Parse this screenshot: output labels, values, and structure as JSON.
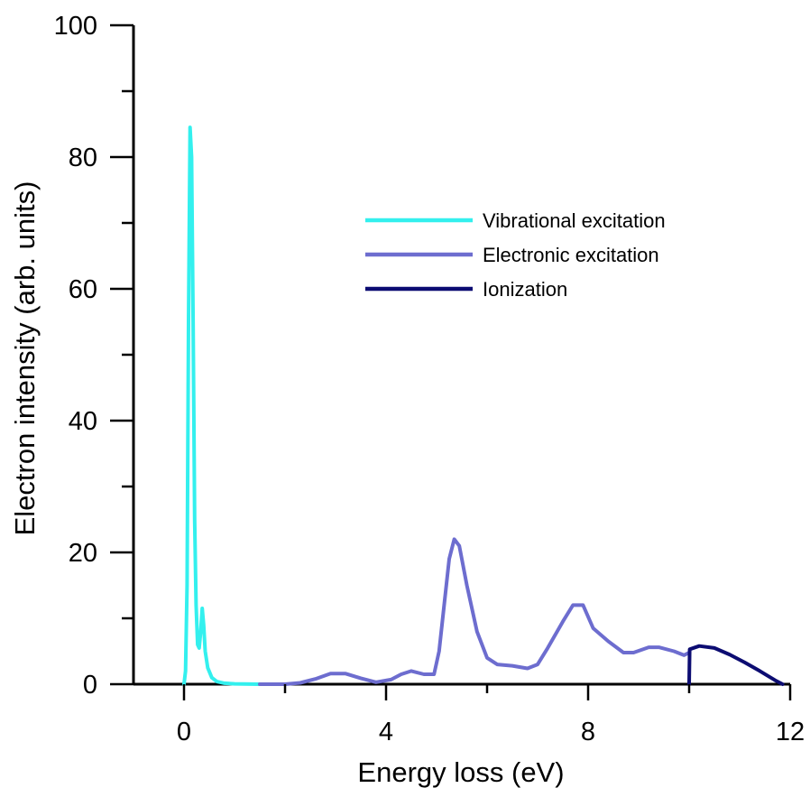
{
  "chart_data": {
    "type": "line",
    "title": "",
    "xlabel": "Energy loss (eV)",
    "ylabel": "Electron intensity (arb. units)",
    "xlim": [
      -1,
      12
    ],
    "ylim": [
      0,
      100
    ],
    "x_major_ticks": [
      0,
      4,
      8,
      12
    ],
    "x_tick_labels": [
      "0",
      "4",
      "8",
      "12"
    ],
    "x_minor_ticks": [
      2,
      6,
      10
    ],
    "y_major_ticks": [
      0,
      20,
      40,
      60,
      80,
      100
    ],
    "y_tick_labels": [
      "0",
      "20",
      "40",
      "60",
      "80",
      "100"
    ],
    "y_minor_ticks": [
      10,
      30,
      50,
      70,
      90
    ],
    "legend_position": "upper-right",
    "grid": false,
    "series": [
      {
        "name": "Vibrational excitation",
        "color": "#33f0ee",
        "points": [
          [
            0.0,
            0
          ],
          [
            0.03,
            2
          ],
          [
            0.06,
            15
          ],
          [
            0.09,
            55
          ],
          [
            0.12,
            84.5
          ],
          [
            0.15,
            80
          ],
          [
            0.18,
            55
          ],
          [
            0.21,
            25
          ],
          [
            0.24,
            12
          ],
          [
            0.27,
            6
          ],
          [
            0.3,
            5.5
          ],
          [
            0.33,
            8
          ],
          [
            0.36,
            11.5
          ],
          [
            0.39,
            9
          ],
          [
            0.42,
            5
          ],
          [
            0.47,
            2.5
          ],
          [
            0.55,
            1
          ],
          [
            0.65,
            0.4
          ],
          [
            0.8,
            0.15
          ],
          [
            1.0,
            0.05
          ],
          [
            1.5,
            0
          ]
        ]
      },
      {
        "name": "Electronic excitation",
        "color": "#6d6dcf",
        "points": [
          [
            1.5,
            0
          ],
          [
            2.0,
            0
          ],
          [
            2.3,
            0.2
          ],
          [
            2.6,
            0.8
          ],
          [
            2.9,
            1.6
          ],
          [
            3.2,
            1.6
          ],
          [
            3.5,
            0.9
          ],
          [
            3.8,
            0.3
          ],
          [
            4.1,
            0.7
          ],
          [
            4.3,
            1.5
          ],
          [
            4.5,
            2.0
          ],
          [
            4.75,
            1.5
          ],
          [
            4.95,
            1.5
          ],
          [
            5.05,
            5
          ],
          [
            5.15,
            12
          ],
          [
            5.25,
            19
          ],
          [
            5.35,
            22
          ],
          [
            5.45,
            21
          ],
          [
            5.6,
            15
          ],
          [
            5.8,
            8
          ],
          [
            6.0,
            4
          ],
          [
            6.2,
            3
          ],
          [
            6.5,
            2.8
          ],
          [
            6.8,
            2.4
          ],
          [
            7.0,
            3
          ],
          [
            7.2,
            5.5
          ],
          [
            7.5,
            9.5
          ],
          [
            7.7,
            12
          ],
          [
            7.9,
            12
          ],
          [
            8.1,
            8.5
          ],
          [
            8.4,
            6.5
          ],
          [
            8.7,
            4.8
          ],
          [
            8.9,
            4.8
          ],
          [
            9.2,
            5.6
          ],
          [
            9.4,
            5.6
          ],
          [
            9.7,
            5
          ],
          [
            9.9,
            4.4
          ],
          [
            10.0,
            4.8
          ]
        ]
      },
      {
        "name": "Ionization",
        "color": "#0c0c72",
        "points": [
          [
            10.0,
            0
          ],
          [
            10.01,
            5.3
          ],
          [
            10.2,
            5.8
          ],
          [
            10.5,
            5.5
          ],
          [
            10.8,
            4.5
          ],
          [
            11.1,
            3.3
          ],
          [
            11.4,
            2.0
          ],
          [
            11.7,
            0.6
          ],
          [
            11.85,
            0
          ]
        ]
      }
    ]
  }
}
